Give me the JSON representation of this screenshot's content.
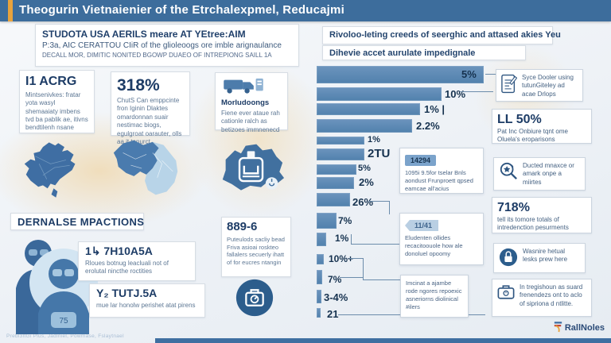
{
  "colors": {
    "header_bg": "#3d6d9c",
    "accent_orange": "#e8a33d",
    "bar_blue": "#5886b4",
    "dark_text": "#1d3c66"
  },
  "header": {
    "title": "Theogurin Vietnaienier of the Etrchalexpmel, Reducajmi"
  },
  "intro_card": {
    "line1": "STUDOTA USA AERILS meare AT YEtree:AIM",
    "line2": "P:3a, AIC CERATTOU CIiR of the glioleoogs ore imble arignaulance",
    "line3": "DECALL MOR, DIMITIC NONITED BGOWP DUAEO OF INTREPIONG SAILL 1A"
  },
  "stat_cards": [
    {
      "value": "I1 ACRG",
      "text": "Mintsenivkes: fratar yota wasyl shemaaiaty imbens tvd ba pablik ae, itivns bendtilenh nsane"
    },
    {
      "value": "318%",
      "text": "ChutS Can emppcinte fron Iginin Dlaktes omardonnan suair nestimac biogs, egulgroat oarauter, olls aa it tanurct"
    },
    {
      "value": "Morludoongs",
      "text": "Fiene ever ataue rah cationle ralch as betizoes immnenecd"
    }
  ],
  "impacts": {
    "heading": "DERNALSE MPACTIONS",
    "rows": [
      {
        "value": "1↳ 7H10A5A",
        "text": "Rloues botnug leacluali not of erolutal nincthe roctities"
      },
      {
        "value": "Y₂ TUTJ.5A",
        "text": "mue lar honolw perishet atat pirens"
      }
    ],
    "badge_value": "75"
  },
  "middle_card": {
    "value": "889-6",
    "text": "Puteulods sacliy bead Friva asioai roskteo fallalers secuerly ihatt of for eucres ntangin"
  },
  "right_panel": {
    "header1": "Rivoloo-leting creeds of seerghic and attased akies Yeu",
    "header2": "Dihevie accet aurulate impedignale",
    "callouts": [
      {
        "badge": "14294",
        "text": "1095i 9.5for tselar Bnls aondust Frunproett qpsed eamcae all'acius"
      },
      {
        "badge": "11/41",
        "text": "Eludenten ollides recacitoouole how ale donoluel opoomy"
      },
      {
        "badge": "",
        "text": "Imcinat a ajambe rode ngores repoexic asneriorns diolinical #ilers"
      }
    ],
    "side_items": [
      {
        "icon": "document-pen-icon",
        "value": "",
        "text": "Syce Dooler using tutunGiteley ad acae Drlops"
      },
      {
        "icon": "",
        "value": "LL 50%",
        "text": "Pat Inc Onbiure tqnt ome Oluela's eroparisons"
      },
      {
        "icon": "magnifier-star-icon",
        "value": "",
        "text": "Ducted mnaxce or amark onpe a miirtes"
      },
      {
        "icon": "",
        "value": "718%",
        "text": "tell its tomore totals of intredenction pesurments"
      },
      {
        "icon": "padlock-emblem-icon",
        "value": "",
        "text": "Wasnire hetual lesks prew here"
      },
      {
        "icon": "briefcase-icon",
        "value": "",
        "text": "In tregishoun as suard frenendezs ont to aclo of sipriona d ntlitte."
      }
    ]
  },
  "chart_data": {
    "type": "bar",
    "orientation": "horizontal",
    "title": "",
    "legend": false,
    "bar_color": "#5886b4",
    "bars": [
      {
        "label": "5%",
        "length": 210
      },
      {
        "label": "10%",
        "length": 157
      },
      {
        "label": "1% |",
        "length": 130
      },
      {
        "label": "2.2%",
        "length": 120
      },
      {
        "label": "1%",
        "length": 60
      },
      {
        "label": "2TU",
        "length": 60
      },
      {
        "label": "5%",
        "length": 50
      },
      {
        "label": "2%",
        "length": 47
      },
      {
        "label": "26%",
        "length": 42
      },
      {
        "label": "7%",
        "length": 25
      },
      {
        "label": "1%",
        "length": 12
      },
      {
        "label": "10%+",
        "length": 9
      },
      {
        "label": "7%",
        "length": 7
      },
      {
        "label": "3-4%",
        "length": 6
      },
      {
        "label": "21",
        "length": 5
      }
    ]
  },
  "footer": {
    "left_text": "Prebl3ltGi Plus, Jadlniel, Powmase, Fslaytnael",
    "logo_text": "RallNoles"
  }
}
